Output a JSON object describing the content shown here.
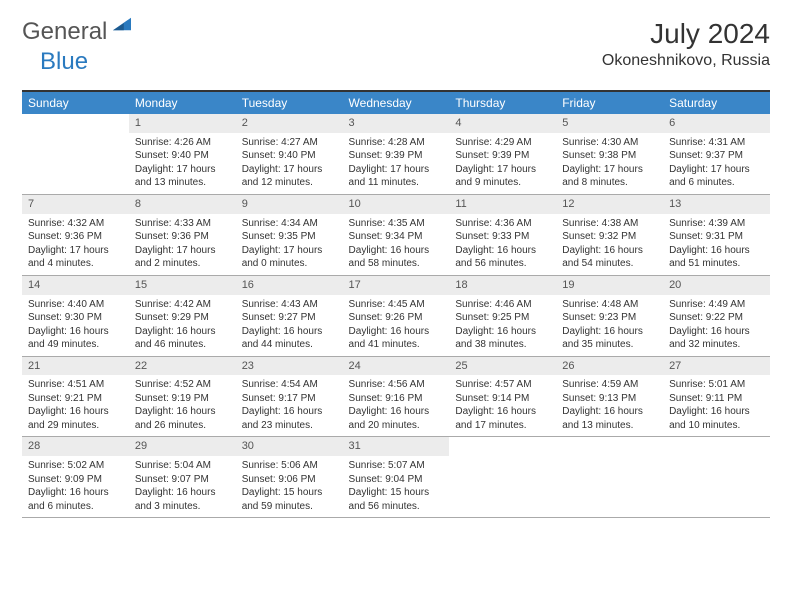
{
  "logo": {
    "word1": "General",
    "word2": "Blue",
    "color_general": "#555555",
    "color_blue": "#2a7abf"
  },
  "header": {
    "month_title": "July 2024",
    "location": "Okoneshnikovo, Russia"
  },
  "colors": {
    "header_bg": "#3a86c8",
    "header_text": "#ffffff",
    "daynum_bg": "#ececec",
    "border_top": "#333333",
    "row_border": "#aaaaaa",
    "text": "#333333"
  },
  "fonts": {
    "title_size": 28,
    "location_size": 16,
    "dayhead_size": 12,
    "body_size": 10
  },
  "day_names": [
    "Sunday",
    "Monday",
    "Tuesday",
    "Wednesday",
    "Thursday",
    "Friday",
    "Saturday"
  ],
  "weeks": [
    [
      {
        "blank": true
      },
      {
        "n": "1",
        "sunrise": "Sunrise: 4:26 AM",
        "sunset": "Sunset: 9:40 PM",
        "day1": "Daylight: 17 hours",
        "day2": "and 13 minutes."
      },
      {
        "n": "2",
        "sunrise": "Sunrise: 4:27 AM",
        "sunset": "Sunset: 9:40 PM",
        "day1": "Daylight: 17 hours",
        "day2": "and 12 minutes."
      },
      {
        "n": "3",
        "sunrise": "Sunrise: 4:28 AM",
        "sunset": "Sunset: 9:39 PM",
        "day1": "Daylight: 17 hours",
        "day2": "and 11 minutes."
      },
      {
        "n": "4",
        "sunrise": "Sunrise: 4:29 AM",
        "sunset": "Sunset: 9:39 PM",
        "day1": "Daylight: 17 hours",
        "day2": "and 9 minutes."
      },
      {
        "n": "5",
        "sunrise": "Sunrise: 4:30 AM",
        "sunset": "Sunset: 9:38 PM",
        "day1": "Daylight: 17 hours",
        "day2": "and 8 minutes."
      },
      {
        "n": "6",
        "sunrise": "Sunrise: 4:31 AM",
        "sunset": "Sunset: 9:37 PM",
        "day1": "Daylight: 17 hours",
        "day2": "and 6 minutes."
      }
    ],
    [
      {
        "n": "7",
        "sunrise": "Sunrise: 4:32 AM",
        "sunset": "Sunset: 9:36 PM",
        "day1": "Daylight: 17 hours",
        "day2": "and 4 minutes."
      },
      {
        "n": "8",
        "sunrise": "Sunrise: 4:33 AM",
        "sunset": "Sunset: 9:36 PM",
        "day1": "Daylight: 17 hours",
        "day2": "and 2 minutes."
      },
      {
        "n": "9",
        "sunrise": "Sunrise: 4:34 AM",
        "sunset": "Sunset: 9:35 PM",
        "day1": "Daylight: 17 hours",
        "day2": "and 0 minutes."
      },
      {
        "n": "10",
        "sunrise": "Sunrise: 4:35 AM",
        "sunset": "Sunset: 9:34 PM",
        "day1": "Daylight: 16 hours",
        "day2": "and 58 minutes."
      },
      {
        "n": "11",
        "sunrise": "Sunrise: 4:36 AM",
        "sunset": "Sunset: 9:33 PM",
        "day1": "Daylight: 16 hours",
        "day2": "and 56 minutes."
      },
      {
        "n": "12",
        "sunrise": "Sunrise: 4:38 AM",
        "sunset": "Sunset: 9:32 PM",
        "day1": "Daylight: 16 hours",
        "day2": "and 54 minutes."
      },
      {
        "n": "13",
        "sunrise": "Sunrise: 4:39 AM",
        "sunset": "Sunset: 9:31 PM",
        "day1": "Daylight: 16 hours",
        "day2": "and 51 minutes."
      }
    ],
    [
      {
        "n": "14",
        "sunrise": "Sunrise: 4:40 AM",
        "sunset": "Sunset: 9:30 PM",
        "day1": "Daylight: 16 hours",
        "day2": "and 49 minutes."
      },
      {
        "n": "15",
        "sunrise": "Sunrise: 4:42 AM",
        "sunset": "Sunset: 9:29 PM",
        "day1": "Daylight: 16 hours",
        "day2": "and 46 minutes."
      },
      {
        "n": "16",
        "sunrise": "Sunrise: 4:43 AM",
        "sunset": "Sunset: 9:27 PM",
        "day1": "Daylight: 16 hours",
        "day2": "and 44 minutes."
      },
      {
        "n": "17",
        "sunrise": "Sunrise: 4:45 AM",
        "sunset": "Sunset: 9:26 PM",
        "day1": "Daylight: 16 hours",
        "day2": "and 41 minutes."
      },
      {
        "n": "18",
        "sunrise": "Sunrise: 4:46 AM",
        "sunset": "Sunset: 9:25 PM",
        "day1": "Daylight: 16 hours",
        "day2": "and 38 minutes."
      },
      {
        "n": "19",
        "sunrise": "Sunrise: 4:48 AM",
        "sunset": "Sunset: 9:23 PM",
        "day1": "Daylight: 16 hours",
        "day2": "and 35 minutes."
      },
      {
        "n": "20",
        "sunrise": "Sunrise: 4:49 AM",
        "sunset": "Sunset: 9:22 PM",
        "day1": "Daylight: 16 hours",
        "day2": "and 32 minutes."
      }
    ],
    [
      {
        "n": "21",
        "sunrise": "Sunrise: 4:51 AM",
        "sunset": "Sunset: 9:21 PM",
        "day1": "Daylight: 16 hours",
        "day2": "and 29 minutes."
      },
      {
        "n": "22",
        "sunrise": "Sunrise: 4:52 AM",
        "sunset": "Sunset: 9:19 PM",
        "day1": "Daylight: 16 hours",
        "day2": "and 26 minutes."
      },
      {
        "n": "23",
        "sunrise": "Sunrise: 4:54 AM",
        "sunset": "Sunset: 9:17 PM",
        "day1": "Daylight: 16 hours",
        "day2": "and 23 minutes."
      },
      {
        "n": "24",
        "sunrise": "Sunrise: 4:56 AM",
        "sunset": "Sunset: 9:16 PM",
        "day1": "Daylight: 16 hours",
        "day2": "and 20 minutes."
      },
      {
        "n": "25",
        "sunrise": "Sunrise: 4:57 AM",
        "sunset": "Sunset: 9:14 PM",
        "day1": "Daylight: 16 hours",
        "day2": "and 17 minutes."
      },
      {
        "n": "26",
        "sunrise": "Sunrise: 4:59 AM",
        "sunset": "Sunset: 9:13 PM",
        "day1": "Daylight: 16 hours",
        "day2": "and 13 minutes."
      },
      {
        "n": "27",
        "sunrise": "Sunrise: 5:01 AM",
        "sunset": "Sunset: 9:11 PM",
        "day1": "Daylight: 16 hours",
        "day2": "and 10 minutes."
      }
    ],
    [
      {
        "n": "28",
        "sunrise": "Sunrise: 5:02 AM",
        "sunset": "Sunset: 9:09 PM",
        "day1": "Daylight: 16 hours",
        "day2": "and 6 minutes."
      },
      {
        "n": "29",
        "sunrise": "Sunrise: 5:04 AM",
        "sunset": "Sunset: 9:07 PM",
        "day1": "Daylight: 16 hours",
        "day2": "and 3 minutes."
      },
      {
        "n": "30",
        "sunrise": "Sunrise: 5:06 AM",
        "sunset": "Sunset: 9:06 PM",
        "day1": "Daylight: 15 hours",
        "day2": "and 59 minutes."
      },
      {
        "n": "31",
        "sunrise": "Sunrise: 5:07 AM",
        "sunset": "Sunset: 9:04 PM",
        "day1": "Daylight: 15 hours",
        "day2": "and 56 minutes."
      },
      {
        "blank": true
      },
      {
        "blank": true
      },
      {
        "blank": true
      }
    ]
  ]
}
